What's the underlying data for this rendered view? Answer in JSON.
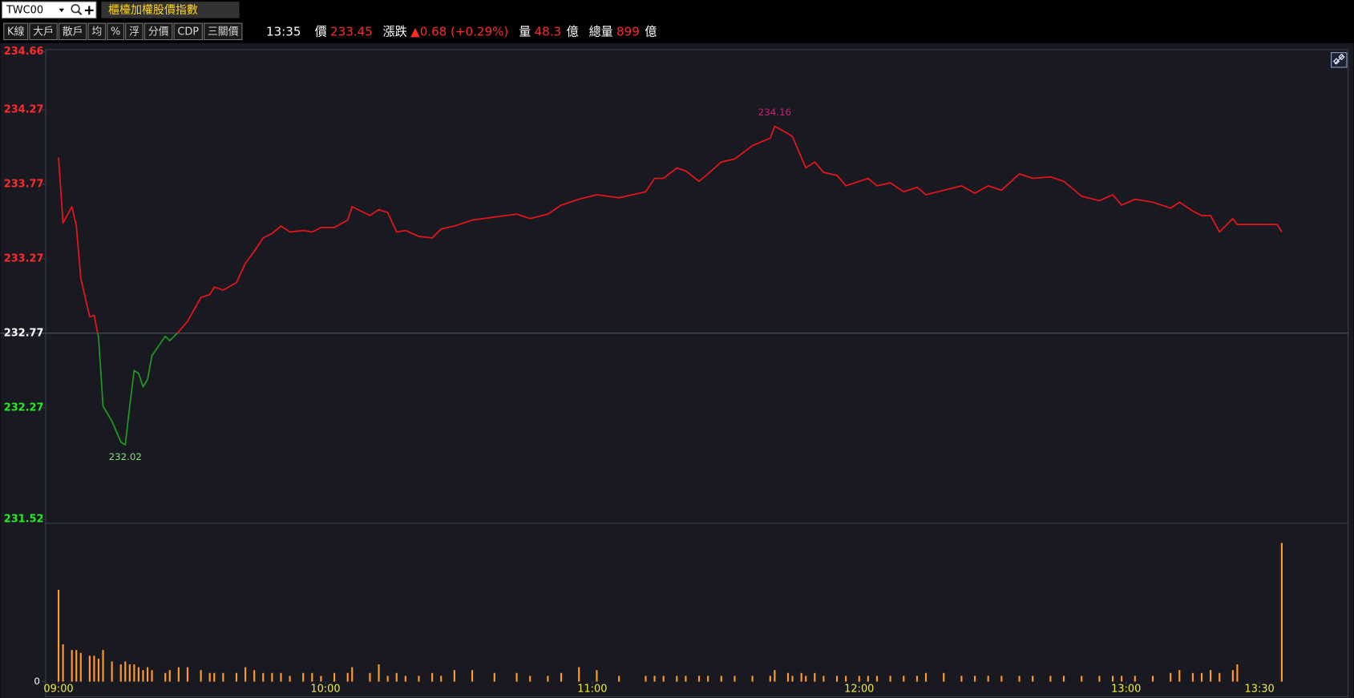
{
  "toolbar": {
    "symbol": "TWC00",
    "title": "櫃檯加權股價指數",
    "buttons": [
      "K線",
      "大戶",
      "散戶",
      "均",
      "%",
      "浮",
      "分價",
      "CDP",
      "三關價"
    ]
  },
  "quote": {
    "time": "13:35",
    "price_label": "價",
    "price": "233.45",
    "change_label": "漲跌",
    "change": "▲0.68 (+0.29%)",
    "volume_label": "量",
    "volume": "48.3",
    "volume_unit": "億",
    "total_label": "總量",
    "total": "899",
    "total_unit": "億"
  },
  "chart_data": {
    "type": "line",
    "x": [
      "09:00",
      "09:01",
      "09:03",
      "09:04",
      "09:05",
      "09:07",
      "09:08",
      "09:09",
      "09:10",
      "09:12",
      "09:14",
      "09:15",
      "09:16",
      "09:17",
      "09:18",
      "09:19",
      "09:20",
      "09:21",
      "09:24",
      "09:25",
      "09:27",
      "09:29",
      "09:32",
      "09:34",
      "09:35",
      "09:37",
      "09:40",
      "09:42",
      "09:44",
      "09:46",
      "09:48",
      "09:50",
      "09:52",
      "09:55",
      "09:57",
      "09:59",
      "10:02",
      "10:05",
      "10:06",
      "10:10",
      "10:12",
      "10:14",
      "10:16",
      "10:18",
      "10:21",
      "10:24",
      "10:26",
      "10:29",
      "10:33",
      "10:38",
      "10:43",
      "10:46",
      "10:50",
      "10:53",
      "10:57",
      "11:01",
      "11:06",
      "11:12",
      "11:14",
      "11:16",
      "11:19",
      "11:21",
      "11:24",
      "11:26",
      "11:29",
      "11:32",
      "11:36",
      "11:40",
      "11:41",
      "11:44",
      "11:45",
      "11:47",
      "11:48",
      "11:50",
      "11:52",
      "11:55",
      "11:57",
      "12:00",
      "12:02",
      "12:04",
      "12:07",
      "12:10",
      "12:13",
      "12:15",
      "12:19",
      "12:23",
      "12:26",
      "12:29",
      "12:32",
      "12:36",
      "12:39",
      "12:43",
      "12:46",
      "12:50",
      "12:54",
      "12:57",
      "12:59",
      "13:02",
      "13:06",
      "13:10",
      "13:12",
      "13:15",
      "13:17",
      "13:19",
      "13:21",
      "13:24",
      "13:25",
      "13:34",
      "13:35"
    ],
    "values": [
      233.95,
      233.51,
      233.62,
      233.49,
      233.14,
      232.88,
      232.89,
      232.74,
      232.28,
      232.18,
      232.04,
      232.02,
      232.28,
      232.52,
      232.5,
      232.41,
      232.46,
      232.62,
      232.75,
      232.72,
      232.78,
      232.85,
      233.01,
      233.03,
      233.08,
      233.06,
      233.11,
      233.24,
      233.32,
      233.41,
      233.44,
      233.49,
      233.45,
      233.46,
      233.45,
      233.48,
      233.48,
      233.53,
      233.62,
      233.56,
      233.6,
      233.58,
      233.45,
      233.46,
      233.42,
      233.41,
      233.47,
      233.49,
      233.53,
      233.55,
      233.57,
      233.54,
      233.57,
      233.63,
      233.67,
      233.7,
      233.68,
      233.72,
      233.81,
      233.81,
      233.88,
      233.86,
      233.79,
      233.84,
      233.92,
      233.94,
      234.03,
      234.08,
      234.16,
      234.11,
      234.09,
      233.95,
      233.88,
      233.92,
      233.85,
      233.83,
      233.76,
      233.79,
      233.81,
      233.76,
      233.78,
      233.72,
      233.75,
      233.7,
      233.73,
      233.76,
      233.71,
      233.76,
      233.73,
      233.84,
      233.81,
      233.82,
      233.79,
      233.69,
      233.66,
      233.7,
      233.63,
      233.67,
      233.65,
      233.61,
      233.65,
      233.59,
      233.56,
      233.56,
      233.45,
      233.54,
      233.5,
      233.5,
      233.45
    ],
    "reference": 232.77,
    "up_color": "#e8141c",
    "down_color": "#1e9a1e",
    "label_colors": {
      "up": "#ff2a2a",
      "flat": "#ffffff",
      "down": "#22ee22"
    },
    "ylim": [
      231.52,
      234.66
    ],
    "yticks": [
      234.66,
      234.27,
      233.77,
      233.27,
      232.77,
      232.27,
      231.52
    ],
    "xlim": [
      "08:57",
      "13:50"
    ],
    "xticks": [
      "09:00",
      "10:00",
      "11:00",
      "12:00",
      "13:00",
      "13:30"
    ],
    "annotations": [
      {
        "x": "11:41",
        "value": 234.16,
        "color": "#d81b7a"
      },
      {
        "x": "09:15",
        "value": 232.02,
        "color": "#7fe07f"
      }
    ],
    "volume": {
      "type": "bar",
      "color": "#ff9a2e",
      "values": [
        32,
        13,
        11,
        11,
        10,
        9,
        9,
        8,
        11,
        7,
        6,
        7,
        6,
        6,
        5,
        4,
        5,
        4,
        3,
        4,
        5,
        5,
        4,
        3,
        3,
        3,
        3,
        5,
        4,
        3,
        3,
        3,
        2,
        3,
        3,
        2,
        3,
        3,
        5,
        3,
        6,
        2,
        3,
        2,
        2,
        3,
        2,
        4,
        4,
        3,
        3,
        2,
        2,
        3,
        5,
        4,
        2,
        2,
        2,
        2,
        2,
        2,
        2,
        2,
        2,
        2,
        2,
        2,
        4,
        3,
        2,
        3,
        2,
        3,
        2,
        2,
        2,
        2,
        2,
        2,
        2,
        2,
        2,
        3,
        3,
        2,
        2,
        2,
        2,
        2,
        2,
        2,
        2,
        2,
        2,
        2,
        2,
        2,
        2,
        3,
        4,
        3,
        3,
        4,
        3,
        4,
        6,
        0,
        48.3
      ],
      "ylim": [
        0,
        55
      ],
      "yticks": [
        0
      ]
    }
  }
}
